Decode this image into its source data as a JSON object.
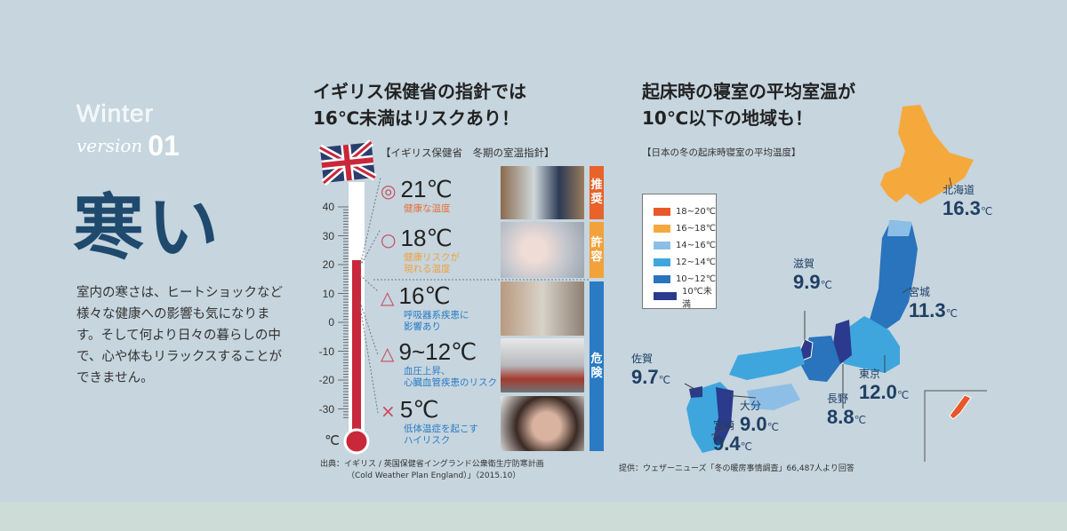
{
  "intro": {
    "winter": "Winter",
    "version": "version",
    "number": "01",
    "title": "寒い",
    "body": "室内の寒さは、ヒートショックなど様々な健康への影響も気になります。そして何より日々の暮らしの中で、心や体もリラックスすることができません。"
  },
  "uk": {
    "headline1": "イギリス保健省の指針では",
    "headline2": "16℃未満はリスクあり！",
    "subtitle": "【イギリス保健省　冬期の室温指針】",
    "scale": [
      "40",
      "30",
      "20",
      "10",
      "0",
      "-10",
      "-20",
      "-30"
    ],
    "unit": "℃",
    "items": [
      {
        "symbol": "◎",
        "temp": "21℃",
        "desc1": "健康な温度",
        "desc2": "",
        "color": "#e8703a"
      },
      {
        "symbol": "○",
        "temp": "18℃",
        "desc1": "健康リスクが",
        "desc2": "現れる温度",
        "color": "#f3a13a"
      },
      {
        "symbol": "△",
        "temp": "16℃",
        "desc1": "呼吸器系疾患に",
        "desc2": "影響あり",
        "color": "#2a7bc4"
      },
      {
        "symbol": "△",
        "temp": "9~12℃",
        "desc1": "血圧上昇、",
        "desc2": "心臓血管疾患のリスク",
        "color": "#2a7bc4"
      },
      {
        "symbol": "×",
        "temp": "5℃",
        "desc1": "低体温症を起こす",
        "desc2": "ハイリスク",
        "color": "#2a7bc4"
      }
    ],
    "bars": [
      {
        "label": "推奨",
        "color": "#e8622a"
      },
      {
        "label": "許容",
        "color": "#f3a13a"
      },
      {
        "label": "危険",
        "color": "#2a7bc4"
      }
    ],
    "source1": "出典：イギリス / 英国保健省イングランド公衆衛生庁防寒計画",
    "source2": "（Cold Weather Plan England）」（2015.10）"
  },
  "japan": {
    "headline1": "起床時の寝室の平均室温が",
    "headline2": "10℃以下の地域も！",
    "subtitle": "【日本の冬の起床時寝室の平均温度】",
    "legend": [
      {
        "label": "18~20℃",
        "color": "#e8582a"
      },
      {
        "label": "16~18℃",
        "color": "#f5a93c"
      },
      {
        "label": "14~16℃",
        "color": "#8dbfe6"
      },
      {
        "label": "12~14℃",
        "color": "#3ea6dd"
      },
      {
        "label": "10~12℃",
        "color": "#2a73bd"
      },
      {
        "label": "10℃未満",
        "color": "#2b3a8c"
      }
    ],
    "prefs": [
      {
        "name": "北海道",
        "value": "16.3",
        "unit": "℃"
      },
      {
        "name": "滋賀",
        "value": "9.9",
        "unit": "℃"
      },
      {
        "name": "宮城",
        "value": "11.3",
        "unit": "℃"
      },
      {
        "name": "佐賀",
        "value": "9.7",
        "unit": "℃"
      },
      {
        "name": "東京",
        "value": "12.0",
        "unit": "℃"
      },
      {
        "name": "大分",
        "value": "9.0",
        "unit": "℃"
      },
      {
        "name": "長野",
        "value": "8.8",
        "unit": "℃"
      },
      {
        "name": "宮崎",
        "value": "9.4",
        "unit": "℃"
      }
    ],
    "source": "提供：ウェザーニューズ「冬の暖房事情調査」66,487人より回答"
  }
}
